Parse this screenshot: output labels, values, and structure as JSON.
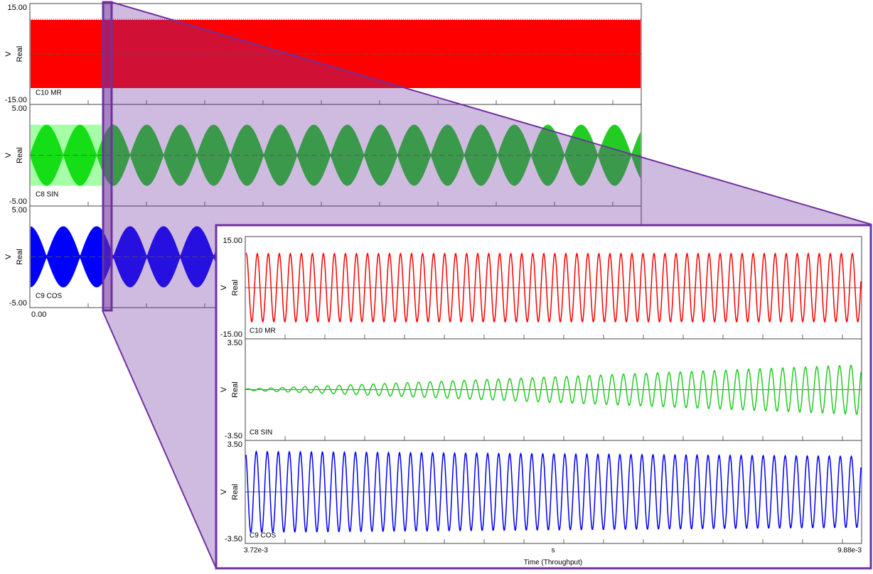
{
  "overview": {
    "panels": [
      {
        "ymax": "15.00",
        "ymin": "-15.00",
        "unit": "V",
        "quantity": "Real",
        "channel": "C10 MR"
      },
      {
        "ymax": "5.00",
        "ymin": "-5.00",
        "unit": "V",
        "quantity": "Real",
        "channel": "C8 SIN"
      },
      {
        "ymax": "5.00",
        "ymin": "-5.00",
        "unit": "V",
        "quantity": "Real",
        "channel": "C9 COS"
      }
    ],
    "x_start": "0.00"
  },
  "zoom": {
    "panels": [
      {
        "ymax": "15.00",
        "ymin": "-15.00",
        "unit": "V",
        "quantity": "Real",
        "channel": "C10 MR"
      },
      {
        "ymax": "3.50",
        "ymin": "-3.50",
        "unit": "V",
        "quantity": "Real",
        "channel": "C8 SIN"
      },
      {
        "ymax": "3.50",
        "ymin": "-3.50",
        "unit": "V",
        "quantity": "Real",
        "channel": "C9 COS"
      }
    ],
    "x_start": "3.72e-3",
    "x_unit": "s",
    "x_end": "9.88e-3",
    "x_label": "Time (Throughput)"
  }
}
